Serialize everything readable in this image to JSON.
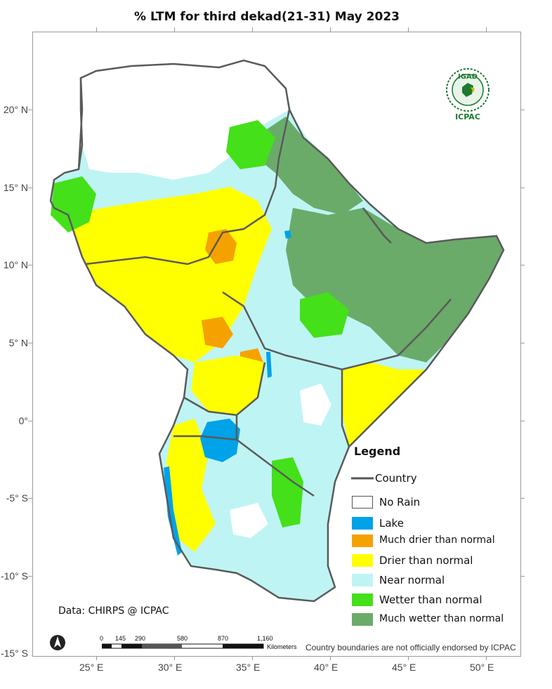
{
  "title": "% LTM   for third dekad(21-31)  May 2023",
  "lat_labels": [
    "20° N",
    "15° N",
    "10° N",
    "5° N",
    "0°",
    "-5° S",
    "-10° S",
    "-15° S"
  ],
  "lon_labels": [
    "25° E",
    "30° E",
    "35° E",
    "40° E",
    "45° E",
    "50° E"
  ],
  "legend": {
    "title": "Legend",
    "items": [
      {
        "label": "Country",
        "color": "#555555",
        "kind": "line"
      },
      {
        "label": "No Rain",
        "color": "#ffffff",
        "kind": "box"
      },
      {
        "label": "Lake",
        "color": "#00a2e8",
        "kind": "box"
      },
      {
        "label": "Much drier than normal",
        "color": "#f5a200",
        "kind": "box"
      },
      {
        "label": "Drier than normal",
        "color": "#ffff00",
        "kind": "box"
      },
      {
        "label": "Near normal",
        "color": "#bff4f4",
        "kind": "box"
      },
      {
        "label": "Wetter than normal",
        "color": "#44e01a",
        "kind": "box"
      },
      {
        "label": "Much wetter than normal",
        "color": "#6aab6a",
        "kind": "box"
      }
    ]
  },
  "source": "Data: CHIRPS @ ICPAC",
  "disclaimer": "Country boundaries are not officially endorsed by ICPAC",
  "scalebar": {
    "labels": [
      "0",
      "145",
      "290",
      "580",
      "870",
      "1,160"
    ],
    "unit": "Kilometers"
  },
  "logo": {
    "top": "IGAD",
    "bottom": "ICPAC"
  },
  "north_arrow": "north-arrow-icon"
}
